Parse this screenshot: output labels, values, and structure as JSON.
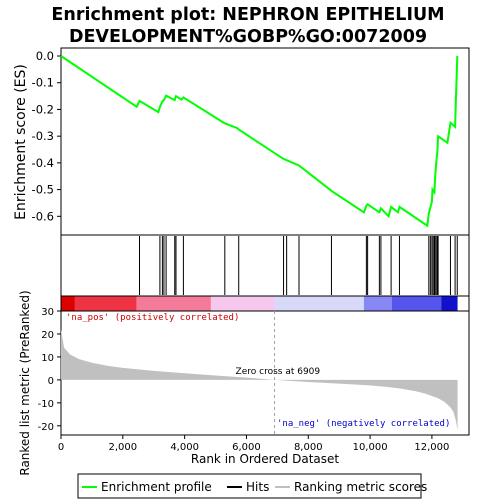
{
  "chart_data": {
    "type": "line",
    "title_lines": [
      "Enrichment plot: NEPHRON EPITHELIUM",
      "DEVELOPMENT%GOBP%GO:0072009"
    ],
    "colors": {
      "enrichment": "#00ff00",
      "hit": "#000000",
      "metric_fill": "#c0c0c0",
      "pos_red": "#ff0000",
      "neg_blue": "#0000ff",
      "zero_dash": "#a0a0a0"
    },
    "enrichment_panel": {
      "ylabel": "Enrichment score (ES)",
      "ylim": [
        -0.67,
        0.03
      ],
      "yticks": [
        0.0,
        -0.1,
        -0.2,
        -0.3,
        -0.4,
        -0.5,
        -0.6
      ],
      "ytick_labels": [
        "0.0",
        "-0.1",
        "-0.2",
        "-0.3",
        "-0.4",
        "-0.5",
        "-0.6"
      ],
      "grid": false,
      "series": {
        "name": "Enrichment profile",
        "x": [
          0,
          2450,
          2540,
          3150,
          3200,
          3280,
          3330,
          3400,
          3680,
          3720,
          3900,
          3960,
          5200,
          5300,
          5700,
          5750,
          7200,
          7300,
          7700,
          8700,
          8750,
          9800,
          9880,
          9920,
          10300,
          10350,
          10600,
          10680,
          10900,
          10950,
          11850,
          11900,
          12000,
          12020,
          12080,
          12100,
          12140,
          12180,
          12200,
          12500,
          12600,
          12750,
          12780,
          12820
        ],
        "y": [
          0.0,
          -0.19,
          -0.168,
          -0.21,
          -0.19,
          -0.17,
          -0.165,
          -0.148,
          -0.165,
          -0.15,
          -0.163,
          -0.155,
          -0.245,
          -0.252,
          -0.27,
          -0.275,
          -0.385,
          -0.39,
          -0.41,
          -0.5,
          -0.505,
          -0.585,
          -0.56,
          -0.555,
          -0.585,
          -0.57,
          -0.6,
          -0.565,
          -0.585,
          -0.565,
          -0.635,
          -0.59,
          -0.545,
          -0.5,
          -0.51,
          -0.46,
          -0.4,
          -0.35,
          -0.3,
          -0.325,
          -0.25,
          -0.265,
          -0.15,
          0.0
        ]
      }
    },
    "hits": [
      2540,
      3200,
      3280,
      3330,
      3400,
      3680,
      3720,
      3960,
      5300,
      5750,
      7200,
      7300,
      7700,
      8750,
      9880,
      9920,
      10300,
      10350,
      10680,
      10950,
      11900,
      11950,
      12000,
      12040,
      12080,
      12100,
      12140,
      12180,
      12200,
      12600,
      12750,
      12820
    ],
    "ranked_panel": {
      "ylabel": "Ranked list metric (PreRanked)",
      "ylim": [
        -24,
        30
      ],
      "yticks": [
        30,
        20,
        10,
        0,
        -10,
        -20
      ],
      "ytick_labels": [
        "30",
        "20",
        "10",
        "0",
        "-10",
        "-20"
      ],
      "metric_curve": {
        "x": [
          0,
          100,
          300,
          600,
          1000,
          1500,
          2000,
          3000,
          4000,
          5000,
          6000,
          6909,
          8000,
          9000,
          10000,
          10500,
          11000,
          11500,
          11800,
          12000,
          12200,
          12400,
          12600,
          12700,
          12780,
          12830
        ],
        "y": [
          22,
          14,
          11,
          9,
          7.5,
          6.2,
          5.2,
          3.9,
          2.9,
          1.9,
          1.0,
          0.0,
          -0.9,
          -1.6,
          -2.4,
          -3.0,
          -3.8,
          -5.0,
          -6.0,
          -7.0,
          -8.0,
          -9.5,
          -12,
          -14,
          -18,
          -22
        ]
      },
      "annotations": {
        "pos": "'na_pos' (positively correlated)",
        "neg": "'na_neg' (negatively correlated)",
        "zero_cross": "Zero cross at 6909"
      },
      "zero_cross_value": 6909
    },
    "xaxis": {
      "xlabel": "Rank in Ordered Dataset",
      "xlim": [
        0,
        13200
      ],
      "xticks": [
        0,
        2000,
        4000,
        6000,
        8000,
        10000,
        12000
      ],
      "xtick_labels": [
        "0",
        "2,000",
        "4,000",
        "6,000",
        "8,000",
        "10,000",
        "12,000"
      ],
      "data_max": 12830
    },
    "colorbar": {
      "segments": [
        {
          "from": 0,
          "to": 450,
          "color": "#dd0000"
        },
        {
          "from": 450,
          "to": 2450,
          "color": "#ee3344"
        },
        {
          "from": 2450,
          "to": 4850,
          "color": "#f47a9a"
        },
        {
          "from": 4850,
          "to": 6909,
          "color": "#f7c8ee"
        },
        {
          "from": 6909,
          "to": 9800,
          "color": "#d8d8f8"
        },
        {
          "from": 9800,
          "to": 10700,
          "color": "#8888f4"
        },
        {
          "from": 10700,
          "to": 12300,
          "color": "#5555ee"
        },
        {
          "from": 12300,
          "to": 12830,
          "color": "#1111cc"
        }
      ]
    },
    "legend": {
      "items": [
        {
          "label": "Enrichment profile",
          "color": "#00ff00"
        },
        {
          "label": "Hits",
          "color": "#000000"
        },
        {
          "label": "Ranking metric scores",
          "color": "#c0c0c0"
        }
      ]
    }
  }
}
